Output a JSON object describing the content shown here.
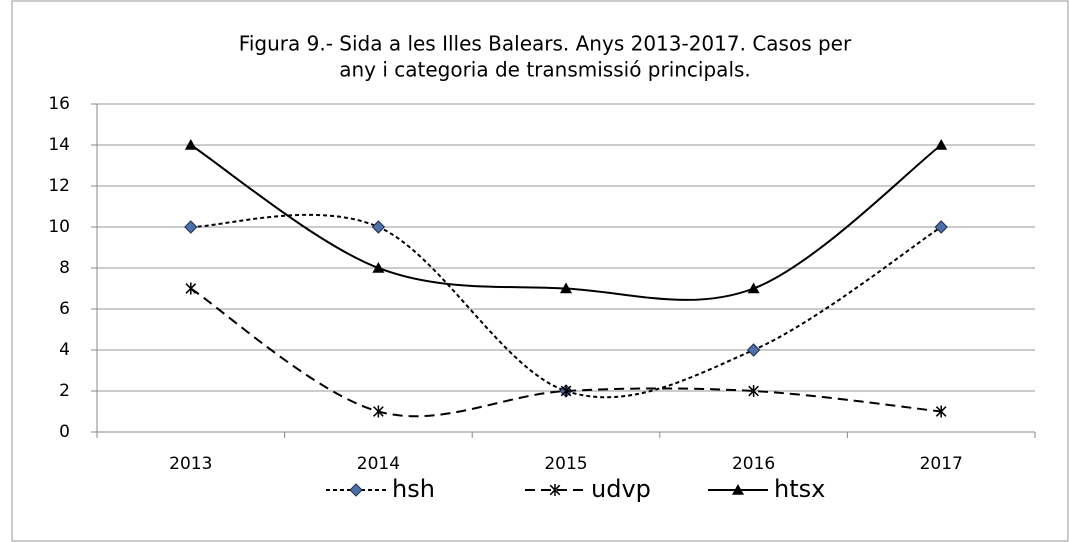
{
  "chart_data": {
    "type": "line",
    "title": [
      "Figura 9.- Sida a les Illes Balears. Anys 2013-2017. Casos per",
      "any i categoria de transmissió principals."
    ],
    "categories": [
      "2013",
      "2014",
      "2015",
      "2016",
      "2017"
    ],
    "series": [
      {
        "name": "hsh",
        "color": "#000000",
        "dash": "dotted",
        "marker": "diamond",
        "marker_fill": "#4f6fa8",
        "values": [
          10,
          10,
          2,
          4,
          10
        ]
      },
      {
        "name": "udvp",
        "color": "#000000",
        "dash": "dashed",
        "marker": "star",
        "marker_fill": "#000000",
        "values": [
          7,
          1,
          2,
          2,
          1
        ]
      },
      {
        "name": "htsx",
        "color": "#000000",
        "dash": "solid",
        "marker": "triangle",
        "marker_fill": "#000000",
        "values": [
          14,
          8,
          7,
          7,
          14
        ]
      }
    ],
    "ylim": [
      0,
      16
    ],
    "yticks": [
      0,
      2,
      4,
      6,
      8,
      10,
      12,
      14,
      16
    ],
    "grid": true,
    "smooth": true,
    "legend": "bottom"
  }
}
